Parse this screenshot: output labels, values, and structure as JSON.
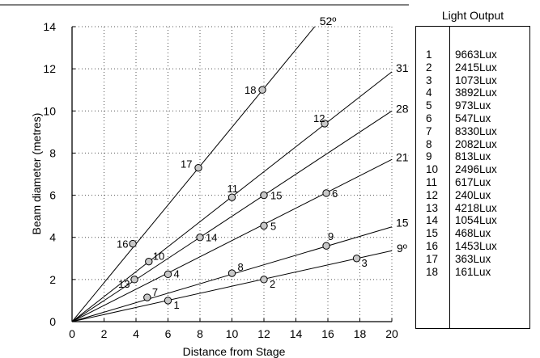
{
  "chart_data": {
    "type": "line",
    "title": "",
    "xlabel": "Distance from Stage",
    "ylabel": "Beam diameter (metres)",
    "xlim": [
      0,
      20
    ],
    "ylim": [
      0,
      14
    ],
    "xticks": [
      "0",
      "2",
      "4",
      "6",
      "8",
      "10",
      "12",
      "14",
      "16",
      "18",
      "20"
    ],
    "yticks": [
      "0",
      "2",
      "4",
      "6",
      "8",
      "10",
      "12",
      "14"
    ],
    "grid": "dotted",
    "series": [
      {
        "name": "52º",
        "slope": 0.9226
      },
      {
        "name": "31º",
        "slope": 0.5929
      },
      {
        "name": "28º",
        "slope": 0.5
      },
      {
        "name": "21º",
        "slope": 0.3848
      },
      {
        "name": "15º",
        "slope": 0.2249
      },
      {
        "name": "9º",
        "slope": 0.1683
      }
    ],
    "points": [
      {
        "label": "1",
        "x": 6,
        "y": 1.0
      },
      {
        "label": "2",
        "x": 12,
        "y": 2.0
      },
      {
        "label": "3",
        "x": 17.8,
        "y": 3.0
      },
      {
        "label": "4",
        "x": 6,
        "y": 2.25
      },
      {
        "label": "5",
        "x": 12,
        "y": 4.55
      },
      {
        "label": "6",
        "x": 15.9,
        "y": 6.1
      },
      {
        "label": "7",
        "x": 4.7,
        "y": 1.15
      },
      {
        "label": "8",
        "x": 10,
        "y": 2.3
      },
      {
        "label": "9",
        "x": 15.9,
        "y": 3.6
      },
      {
        "label": "10",
        "x": 4.8,
        "y": 2.85
      },
      {
        "label": "11",
        "x": 10,
        "y": 5.9
      },
      {
        "label": "12",
        "x": 15.8,
        "y": 9.4
      },
      {
        "label": "13",
        "x": 3.9,
        "y": 2.0
      },
      {
        "label": "14",
        "x": 8,
        "y": 4.0
      },
      {
        "label": "15",
        "x": 12,
        "y": 6.0
      },
      {
        "label": "16",
        "x": 3.8,
        "y": 3.7
      },
      {
        "label": "17",
        "x": 7.9,
        "y": 7.3
      },
      {
        "label": "18",
        "x": 11.9,
        "y": 11.0
      }
    ]
  },
  "table": {
    "title": "Light Output",
    "rows": [
      {
        "num": "1",
        "value": "9663Lux"
      },
      {
        "num": "2",
        "value": "2415Lux"
      },
      {
        "num": "3",
        "value": "1073Lux"
      },
      {
        "num": "4",
        "value": "3892Lux"
      },
      {
        "num": "5",
        "value": "973Lux"
      },
      {
        "num": "6",
        "value": "547Lux"
      },
      {
        "num": "7",
        "value": "8330Lux"
      },
      {
        "num": "8",
        "value": "2082Lux"
      },
      {
        "num": "9",
        "value": "813Lux"
      },
      {
        "num": "10",
        "value": "2496Lux"
      },
      {
        "num": "11",
        "value": "617Lux"
      },
      {
        "num": "12",
        "value": "240Lux"
      },
      {
        "num": "13",
        "value": "4218Lux"
      },
      {
        "num": "14",
        "value": "1054Lux"
      },
      {
        "num": "15",
        "value": "468Lux"
      },
      {
        "num": "16",
        "value": "1453Lux"
      },
      {
        "num": "17",
        "value": "363Lux"
      },
      {
        "num": "18",
        "value": "161Lux"
      }
    ]
  },
  "colors": {
    "line": "#000000",
    "marker_fill": "#c8c8c8",
    "grid": "#555555"
  }
}
